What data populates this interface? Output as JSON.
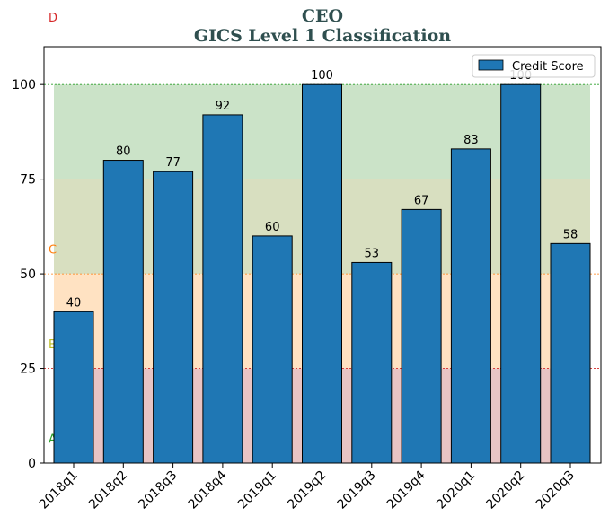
{
  "chart_data": {
    "type": "bar",
    "title": "CEO",
    "subtitle": "GICS Level 1 Classification",
    "categories": [
      "2018q1",
      "2018q2",
      "2018q3",
      "2018q4",
      "2019q1",
      "2019q2",
      "2019q3",
      "2019q4",
      "2020q1",
      "2020q2",
      "2020q3"
    ],
    "series": [
      {
        "name": "Credit Score",
        "values": [
          40,
          80,
          77,
          92,
          60,
          100,
          53,
          67,
          83,
          100,
          58
        ],
        "color": "#1f77b4"
      }
    ],
    "ylim": [
      0,
      110
    ],
    "yticks": [
      0,
      25,
      50,
      75,
      100
    ],
    "legend_position": "top-right",
    "bands": [
      {
        "label": "A",
        "from": 0,
        "to": 25,
        "color": "#e8c4c4",
        "line_color": "#d62728",
        "label_color": "#2ca02c"
      },
      {
        "label": "B",
        "from": 25,
        "to": 50,
        "color": "#ffe2c2",
        "line_color": "#ff7f0e",
        "label_color": "#bcbd22"
      },
      {
        "label": "C",
        "from": 50,
        "to": 75,
        "color": "#d8dfc0",
        "line_color": "#8c8c2a",
        "label_color": "#ff7f0e"
      },
      {
        "label": "D",
        "from": 75,
        "to": 100,
        "color": "#cbe3c8",
        "line_color": "#2ca02c",
        "label_color": "#d62728"
      }
    ]
  }
}
